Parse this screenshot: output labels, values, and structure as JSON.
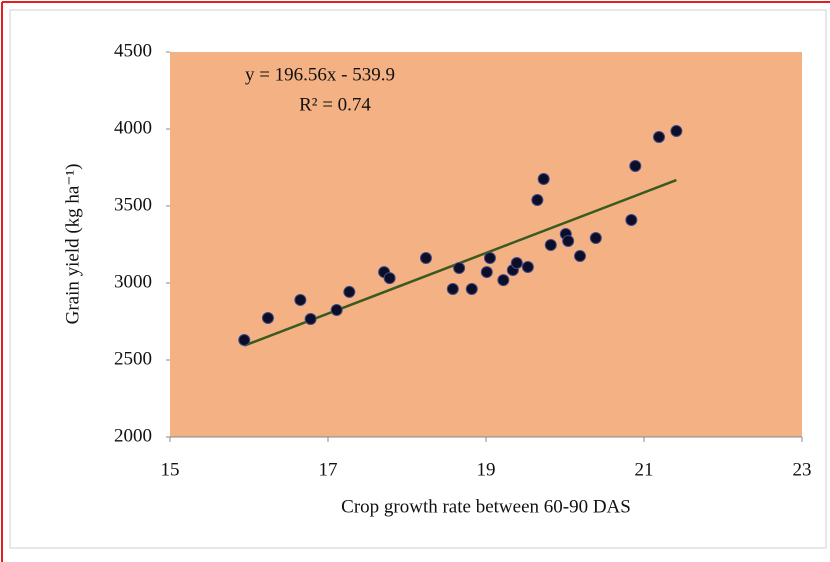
{
  "chart_data": {
    "type": "scatter",
    "x_label": "Crop growth rate between 60-90 DAS",
    "y_label": "Grain yield (kg ha⁻¹)",
    "equation": "y = 196.56x - 539.9",
    "r_squared": "R² = 0.74",
    "trendline": {
      "slope": 196.56,
      "intercept": -539.9,
      "color": "#3a5a1e"
    },
    "series": [
      {
        "color": "#0d0d26",
        "x": [
          15.94,
          16.24,
          16.65,
          16.78,
          17.11,
          17.27,
          17.71,
          17.78,
          18.24,
          18.58,
          18.66,
          18.82,
          19.01,
          19.05,
          19.22,
          19.34,
          19.39,
          19.53,
          19.65,
          19.73,
          19.82,
          20.01,
          20.04,
          20.19,
          20.39,
          20.84,
          20.89,
          21.19,
          21.41
        ],
        "values": [
          2630,
          2773,
          2890,
          2766,
          2825,
          2942,
          3071,
          3032,
          3162,
          2961,
          3097,
          2961,
          3071,
          3162,
          3019,
          3084,
          3130,
          3104,
          3539,
          3675,
          3247,
          3318,
          3273,
          3175,
          3292,
          3409,
          3760,
          3948,
          3987
        ]
      }
    ],
    "xlim": [
      15,
      23
    ],
    "xticks": [
      15,
      17,
      19,
      21,
      23
    ],
    "ylim": [
      2000,
      4500
    ],
    "yticks": [
      2000,
      2500,
      3000,
      3500,
      4000,
      4500
    ],
    "plot_background": "#f4b183"
  }
}
